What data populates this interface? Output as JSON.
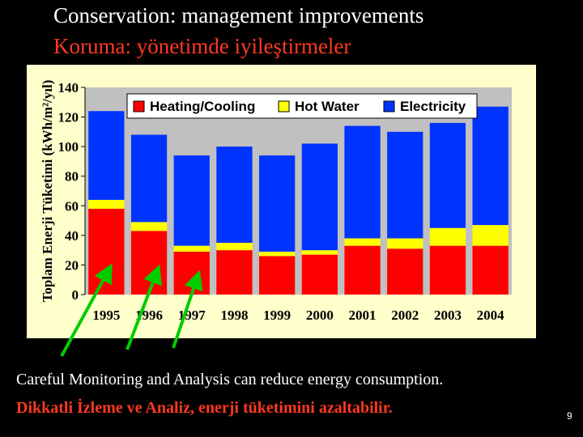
{
  "slide": {
    "title_en": "Conservation: management improvements",
    "title_tr": "Koruma: yönetimde iyileştirmeler",
    "caption_en": "Careful Monitoring and Analysis can reduce energy consumption.",
    "caption_tr": "Dikkatli İzleme ve Analiz, enerji tüketimini azaltabilir.",
    "page_number": "9"
  },
  "colors": {
    "background": "#000000",
    "title_white": "#FFFFFF",
    "title_red": "#FF3A1F",
    "chart_panel": "#FFFFCC",
    "plot_area": "#C0C0C0",
    "heating_cooling": "#FF0000",
    "hot_water": "#FFFF00",
    "electricity": "#0033FF",
    "arrow": "#00CC00"
  },
  "chart_data": {
    "type": "bar",
    "stacked": true,
    "ylabel": "Toplam Enerji Tüketimi (kWh/m²/yıl)",
    "xlabel": "",
    "ylim": [
      0,
      140
    ],
    "yticks": [
      0,
      20,
      40,
      60,
      80,
      100,
      120,
      140
    ],
    "categories": [
      "1995",
      "1996",
      "1997",
      "1998",
      "1999",
      "2000",
      "2001",
      "2002",
      "2003",
      "2004"
    ],
    "series": [
      {
        "name": "Heating/Cooling",
        "color": "#FF0000",
        "values": [
          58,
          43,
          29,
          30,
          26,
          27,
          33,
          31,
          33,
          33
        ]
      },
      {
        "name": "Hot Water",
        "color": "#FFFF00",
        "values": [
          6,
          6,
          4,
          5,
          3,
          3,
          5,
          7,
          12,
          14
        ]
      },
      {
        "name": "Electricity",
        "color": "#0033FF",
        "values": [
          60,
          59,
          61,
          65,
          65,
          72,
          76,
          72,
          71,
          80
        ]
      }
    ],
    "legend": {
      "placement": "top-right",
      "entries": [
        "Heating/Cooling",
        "Hot Water",
        "Electricity"
      ]
    },
    "grid": false,
    "annotations": [
      {
        "type": "arrow",
        "points_to": "1995"
      },
      {
        "type": "arrow",
        "points_to": "1996"
      },
      {
        "type": "arrow",
        "points_to": "1997"
      }
    ]
  }
}
